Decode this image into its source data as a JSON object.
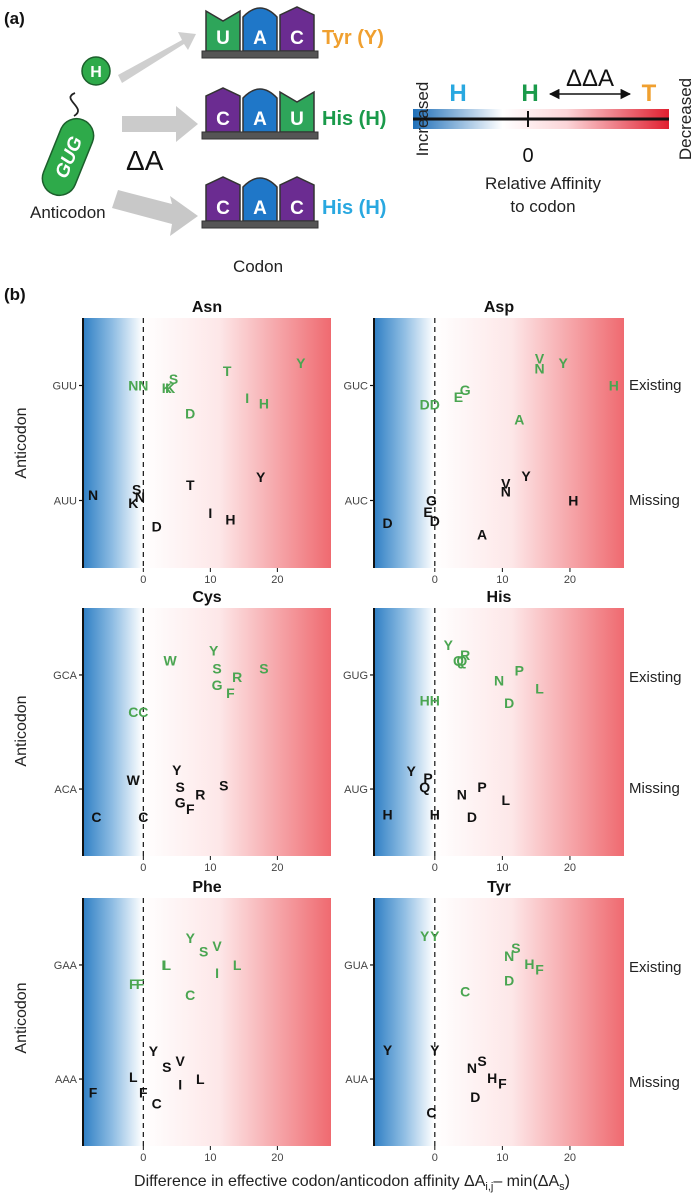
{
  "panel_a": {
    "label": "(a)",
    "amino_acid_label": "H",
    "anticodon_seq": "GUG",
    "anticodon_label": "Anticodon",
    "delta_a_label": "ΔA",
    "codon_caption": "Codon",
    "codons": [
      {
        "bases": [
          "U",
          "A",
          "C"
        ],
        "base_colors": [
          "#2ea55a",
          "#1f77c8",
          "#6b2c91"
        ],
        "aa_label": "Tyr (Y)",
        "aa_color": "#f0a030"
      },
      {
        "bases": [
          "C",
          "A",
          "U"
        ],
        "base_colors": [
          "#6b2c91",
          "#1f77c8",
          "#2ea55a"
        ],
        "aa_label": "His (H)",
        "aa_color": "#1a9a4a"
      },
      {
        "bases": [
          "C",
          "A",
          "C"
        ],
        "base_colors": [
          "#6b2c91",
          "#1f77c8",
          "#6b2c91"
        ],
        "aa_label": "His (H)",
        "aa_color": "#29a8e0"
      }
    ],
    "scale": {
      "left_label": "Increased",
      "right_label": "Decreased",
      "h_left": "H",
      "h_mid": "H",
      "t_right": "T",
      "ddA_label": "ΔΔA",
      "zero_label": "0",
      "caption_line1": "Relative Affinity",
      "caption_line2": "to codon"
    }
  },
  "panel_b": {
    "label": "(b)",
    "y_axis_label": "Anticodon",
    "x_axis_label_main": "Difference in effective codon/anticodon affinity ΔA",
    "x_axis_label_sub": "i,j",
    "x_axis_label_tail": "– min(ΔA",
    "x_axis_label_sub2": "s",
    "x_axis_label_close": ")",
    "row_labels": [
      "Existing",
      "Missing"
    ]
  },
  "chart_data": [
    {
      "type": "scatter",
      "title": "Asn",
      "xlim": [
        -9,
        28
      ],
      "x_ticks": [
        0,
        10,
        20
      ],
      "existing_anticodon": "GUU",
      "missing_anticodon": "AUU",
      "existing_points": [
        {
          "aa": "N",
          "x": -1.5,
          "offset": 0.0
        },
        {
          "aa": "N",
          "x": 0.0,
          "offset": 0.0
        },
        {
          "aa": "S",
          "x": 4.5,
          "offset": 0.6
        },
        {
          "aa": "K",
          "x": 3.5,
          "offset": -0.2
        },
        {
          "aa": "K",
          "x": 4.0,
          "offset": -0.2
        },
        {
          "aa": "T",
          "x": 12.5,
          "offset": 1.3
        },
        {
          "aa": "Y",
          "x": 23.5,
          "offset": 2.0
        },
        {
          "aa": "I",
          "x": 15.5,
          "offset": -1.1
        },
        {
          "aa": "H",
          "x": 18.0,
          "offset": -1.6
        },
        {
          "aa": "D",
          "x": 7.0,
          "offset": -2.5
        }
      ],
      "missing_points": [
        {
          "aa": "N",
          "x": -7.5,
          "offset": 0.5
        },
        {
          "aa": "S",
          "x": -1.0,
          "offset": 1.0
        },
        {
          "aa": "N",
          "x": -0.5,
          "offset": 0.3
        },
        {
          "aa": "K",
          "x": -1.5,
          "offset": -0.2
        },
        {
          "aa": "T",
          "x": 7.0,
          "offset": 1.4
        },
        {
          "aa": "Y",
          "x": 17.5,
          "offset": 2.1
        },
        {
          "aa": "D",
          "x": 2.0,
          "offset": -2.3
        },
        {
          "aa": "I",
          "x": 10.0,
          "offset": -1.1
        },
        {
          "aa": "H",
          "x": 13.0,
          "offset": -1.7
        }
      ]
    },
    {
      "type": "scatter",
      "title": "Asp",
      "xlim": [
        -9,
        28
      ],
      "x_ticks": [
        0,
        10,
        20
      ],
      "existing_anticodon": "GUC",
      "missing_anticodon": "AUC",
      "existing_points": [
        {
          "aa": "D",
          "x": -1.5,
          "offset": -1.7
        },
        {
          "aa": "D",
          "x": 0.0,
          "offset": -1.7
        },
        {
          "aa": "E",
          "x": 3.5,
          "offset": -1.0
        },
        {
          "aa": "G",
          "x": 4.5,
          "offset": -0.4
        },
        {
          "aa": "V",
          "x": 15.5,
          "offset": 2.4
        },
        {
          "aa": "N",
          "x": 15.5,
          "offset": 1.5
        },
        {
          "aa": "Y",
          "x": 19.0,
          "offset": 2.0
        },
        {
          "aa": "H",
          "x": 26.5,
          "offset": 0.0
        },
        {
          "aa": "A",
          "x": 12.5,
          "offset": -3.0
        }
      ],
      "missing_points": [
        {
          "aa": "D",
          "x": -7.0,
          "offset": -2.0
        },
        {
          "aa": "G",
          "x": -0.5,
          "offset": 0.0
        },
        {
          "aa": "E",
          "x": -1.0,
          "offset": -1.0
        },
        {
          "aa": "D",
          "x": 0.0,
          "offset": -1.8
        },
        {
          "aa": "V",
          "x": 10.5,
          "offset": 1.5
        },
        {
          "aa": "N",
          "x": 10.5,
          "offset": 0.8
        },
        {
          "aa": "Y",
          "x": 13.5,
          "offset": 2.2
        },
        {
          "aa": "H",
          "x": 20.5,
          "offset": 0.0
        },
        {
          "aa": "A",
          "x": 7.0,
          "offset": -3.0
        }
      ]
    },
    {
      "type": "scatter",
      "title": "Cys",
      "xlim": [
        -9,
        28
      ],
      "x_ticks": [
        0,
        10,
        20
      ],
      "existing_anticodon": "GCA",
      "missing_anticodon": "ACA",
      "existing_points": [
        {
          "aa": "W",
          "x": 4.0,
          "offset": 1.3
        },
        {
          "aa": "Y",
          "x": 10.5,
          "offset": 2.2
        },
        {
          "aa": "S",
          "x": 11.0,
          "offset": 0.6
        },
        {
          "aa": "R",
          "x": 14.0,
          "offset": -0.2
        },
        {
          "aa": "S",
          "x": 18.0,
          "offset": 0.6
        },
        {
          "aa": "G",
          "x": 11.0,
          "offset": -0.9
        },
        {
          "aa": "F",
          "x": 13.0,
          "offset": -1.6
        },
        {
          "aa": "C",
          "x": -1.5,
          "offset": -3.3
        },
        {
          "aa": "C",
          "x": 0.0,
          "offset": -3.3
        }
      ],
      "missing_points": [
        {
          "aa": "W",
          "x": -1.5,
          "offset": 0.8
        },
        {
          "aa": "Y",
          "x": 5.0,
          "offset": 1.7
        },
        {
          "aa": "S",
          "x": 5.5,
          "offset": 0.2
        },
        {
          "aa": "R",
          "x": 8.5,
          "offset": -0.5
        },
        {
          "aa": "S",
          "x": 12.0,
          "offset": 0.3
        },
        {
          "aa": "G",
          "x": 5.5,
          "offset": -1.2
        },
        {
          "aa": "F",
          "x": 7.0,
          "offset": -1.8
        },
        {
          "aa": "C",
          "x": -7.0,
          "offset": -2.5
        },
        {
          "aa": "C",
          "x": 0.0,
          "offset": -2.5
        }
      ]
    },
    {
      "type": "scatter",
      "title": "His",
      "xlim": [
        -9,
        28
      ],
      "x_ticks": [
        0,
        10,
        20
      ],
      "existing_anticodon": "GUG",
      "missing_anticodon": "AUG",
      "existing_points": [
        {
          "aa": "Y",
          "x": 2.0,
          "offset": 2.7
        },
        {
          "aa": "Q",
          "x": 3.5,
          "offset": 1.3
        },
        {
          "aa": "R",
          "x": 4.5,
          "offset": 1.8
        },
        {
          "aa": "Q",
          "x": 4.0,
          "offset": 1.3
        },
        {
          "aa": "N",
          "x": 9.5,
          "offset": -0.5
        },
        {
          "aa": "P",
          "x": 12.5,
          "offset": 0.4
        },
        {
          "aa": "L",
          "x": 15.5,
          "offset": -1.2
        },
        {
          "aa": "D",
          "x": 11.0,
          "offset": -2.5
        },
        {
          "aa": "H",
          "x": -1.5,
          "offset": -2.3
        },
        {
          "aa": "H",
          "x": 0.0,
          "offset": -2.3
        }
      ],
      "missing_points": [
        {
          "aa": "Y",
          "x": -3.5,
          "offset": 1.6
        },
        {
          "aa": "P",
          "x": -1.0,
          "offset": 1.0
        },
        {
          "aa": "Q",
          "x": -1.5,
          "offset": 0.2
        },
        {
          "aa": "H",
          "x": -7.0,
          "offset": -2.3
        },
        {
          "aa": "H",
          "x": 0.0,
          "offset": -2.3
        },
        {
          "aa": "N",
          "x": 4.0,
          "offset": -0.5
        },
        {
          "aa": "P",
          "x": 7.0,
          "offset": 0.2
        },
        {
          "aa": "L",
          "x": 10.5,
          "offset": -1.0
        },
        {
          "aa": "D",
          "x": 5.5,
          "offset": -2.5
        }
      ]
    },
    {
      "type": "scatter",
      "title": "Phe",
      "xlim": [
        -9,
        28
      ],
      "x_ticks": [
        0,
        10,
        20
      ],
      "existing_anticodon": "GAA",
      "missing_anticodon": "AAA",
      "existing_points": [
        {
          "aa": "Y",
          "x": 7.0,
          "offset": 2.4
        },
        {
          "aa": "S",
          "x": 9.0,
          "offset": 1.2
        },
        {
          "aa": "V",
          "x": 11.0,
          "offset": 1.7
        },
        {
          "aa": "I",
          "x": 3.0,
          "offset": 0.0
        },
        {
          "aa": "L",
          "x": 3.5,
          "offset": 0.0
        },
        {
          "aa": "L",
          "x": 14.0,
          "offset": 0.0
        },
        {
          "aa": "I",
          "x": 11.0,
          "offset": -0.7
        },
        {
          "aa": "F",
          "x": -1.5,
          "offset": -1.7
        },
        {
          "aa": "F",
          "x": -0.5,
          "offset": -1.7
        },
        {
          "aa": "C",
          "x": 7.0,
          "offset": -2.7
        }
      ],
      "missing_points": [
        {
          "aa": "Y",
          "x": 1.5,
          "offset": 2.5
        },
        {
          "aa": "S",
          "x": 3.5,
          "offset": 1.1
        },
        {
          "aa": "V",
          "x": 5.5,
          "offset": 1.6
        },
        {
          "aa": "L",
          "x": -1.5,
          "offset": 0.2
        },
        {
          "aa": "L",
          "x": 8.5,
          "offset": 0.0
        },
        {
          "aa": "I",
          "x": 5.5,
          "offset": -0.5
        },
        {
          "aa": "F",
          "x": -7.5,
          "offset": -1.2
        },
        {
          "aa": "F",
          "x": 0.0,
          "offset": -1.2
        },
        {
          "aa": "C",
          "x": 2.0,
          "offset": -2.2
        }
      ]
    },
    {
      "type": "scatter",
      "title": "Tyr",
      "xlim": [
        -9,
        28
      ],
      "x_ticks": [
        0,
        10,
        20
      ],
      "existing_anticodon": "GUA",
      "missing_anticodon": "AUA",
      "existing_points": [
        {
          "aa": "Y",
          "x": -1.5,
          "offset": 2.6
        },
        {
          "aa": "Y",
          "x": 0.0,
          "offset": 2.6
        },
        {
          "aa": "N",
          "x": 11.0,
          "offset": 0.8
        },
        {
          "aa": "S",
          "x": 12.0,
          "offset": 1.5
        },
        {
          "aa": "H",
          "x": 14.0,
          "offset": 0.1
        },
        {
          "aa": "F",
          "x": 15.5,
          "offset": -0.4
        },
        {
          "aa": "D",
          "x": 11.0,
          "offset": -1.4
        },
        {
          "aa": "C",
          "x": 4.5,
          "offset": -2.4
        }
      ],
      "missing_points": [
        {
          "aa": "Y",
          "x": -7.0,
          "offset": 2.6
        },
        {
          "aa": "Y",
          "x": 0.0,
          "offset": 2.6
        },
        {
          "aa": "N",
          "x": 5.5,
          "offset": 1.0
        },
        {
          "aa": "S",
          "x": 7.0,
          "offset": 1.6
        },
        {
          "aa": "H",
          "x": 8.5,
          "offset": 0.1
        },
        {
          "aa": "F",
          "x": 10.0,
          "offset": -0.4
        },
        {
          "aa": "D",
          "x": 6.0,
          "offset": -1.6
        },
        {
          "aa": "C",
          "x": -0.5,
          "offset": -3.0
        }
      ]
    }
  ],
  "colors": {
    "existing_text": "#4aa551",
    "missing_text": "#111111",
    "gradient_blue": "#2f7fc4",
    "gradient_red": "#e6464c",
    "base_green": "#2ea55a",
    "base_blue": "#1f77c8",
    "base_purple": "#6b2c91",
    "anticodon_green": "#2eaa4a",
    "arrow_grey": "#c8c8c8"
  }
}
